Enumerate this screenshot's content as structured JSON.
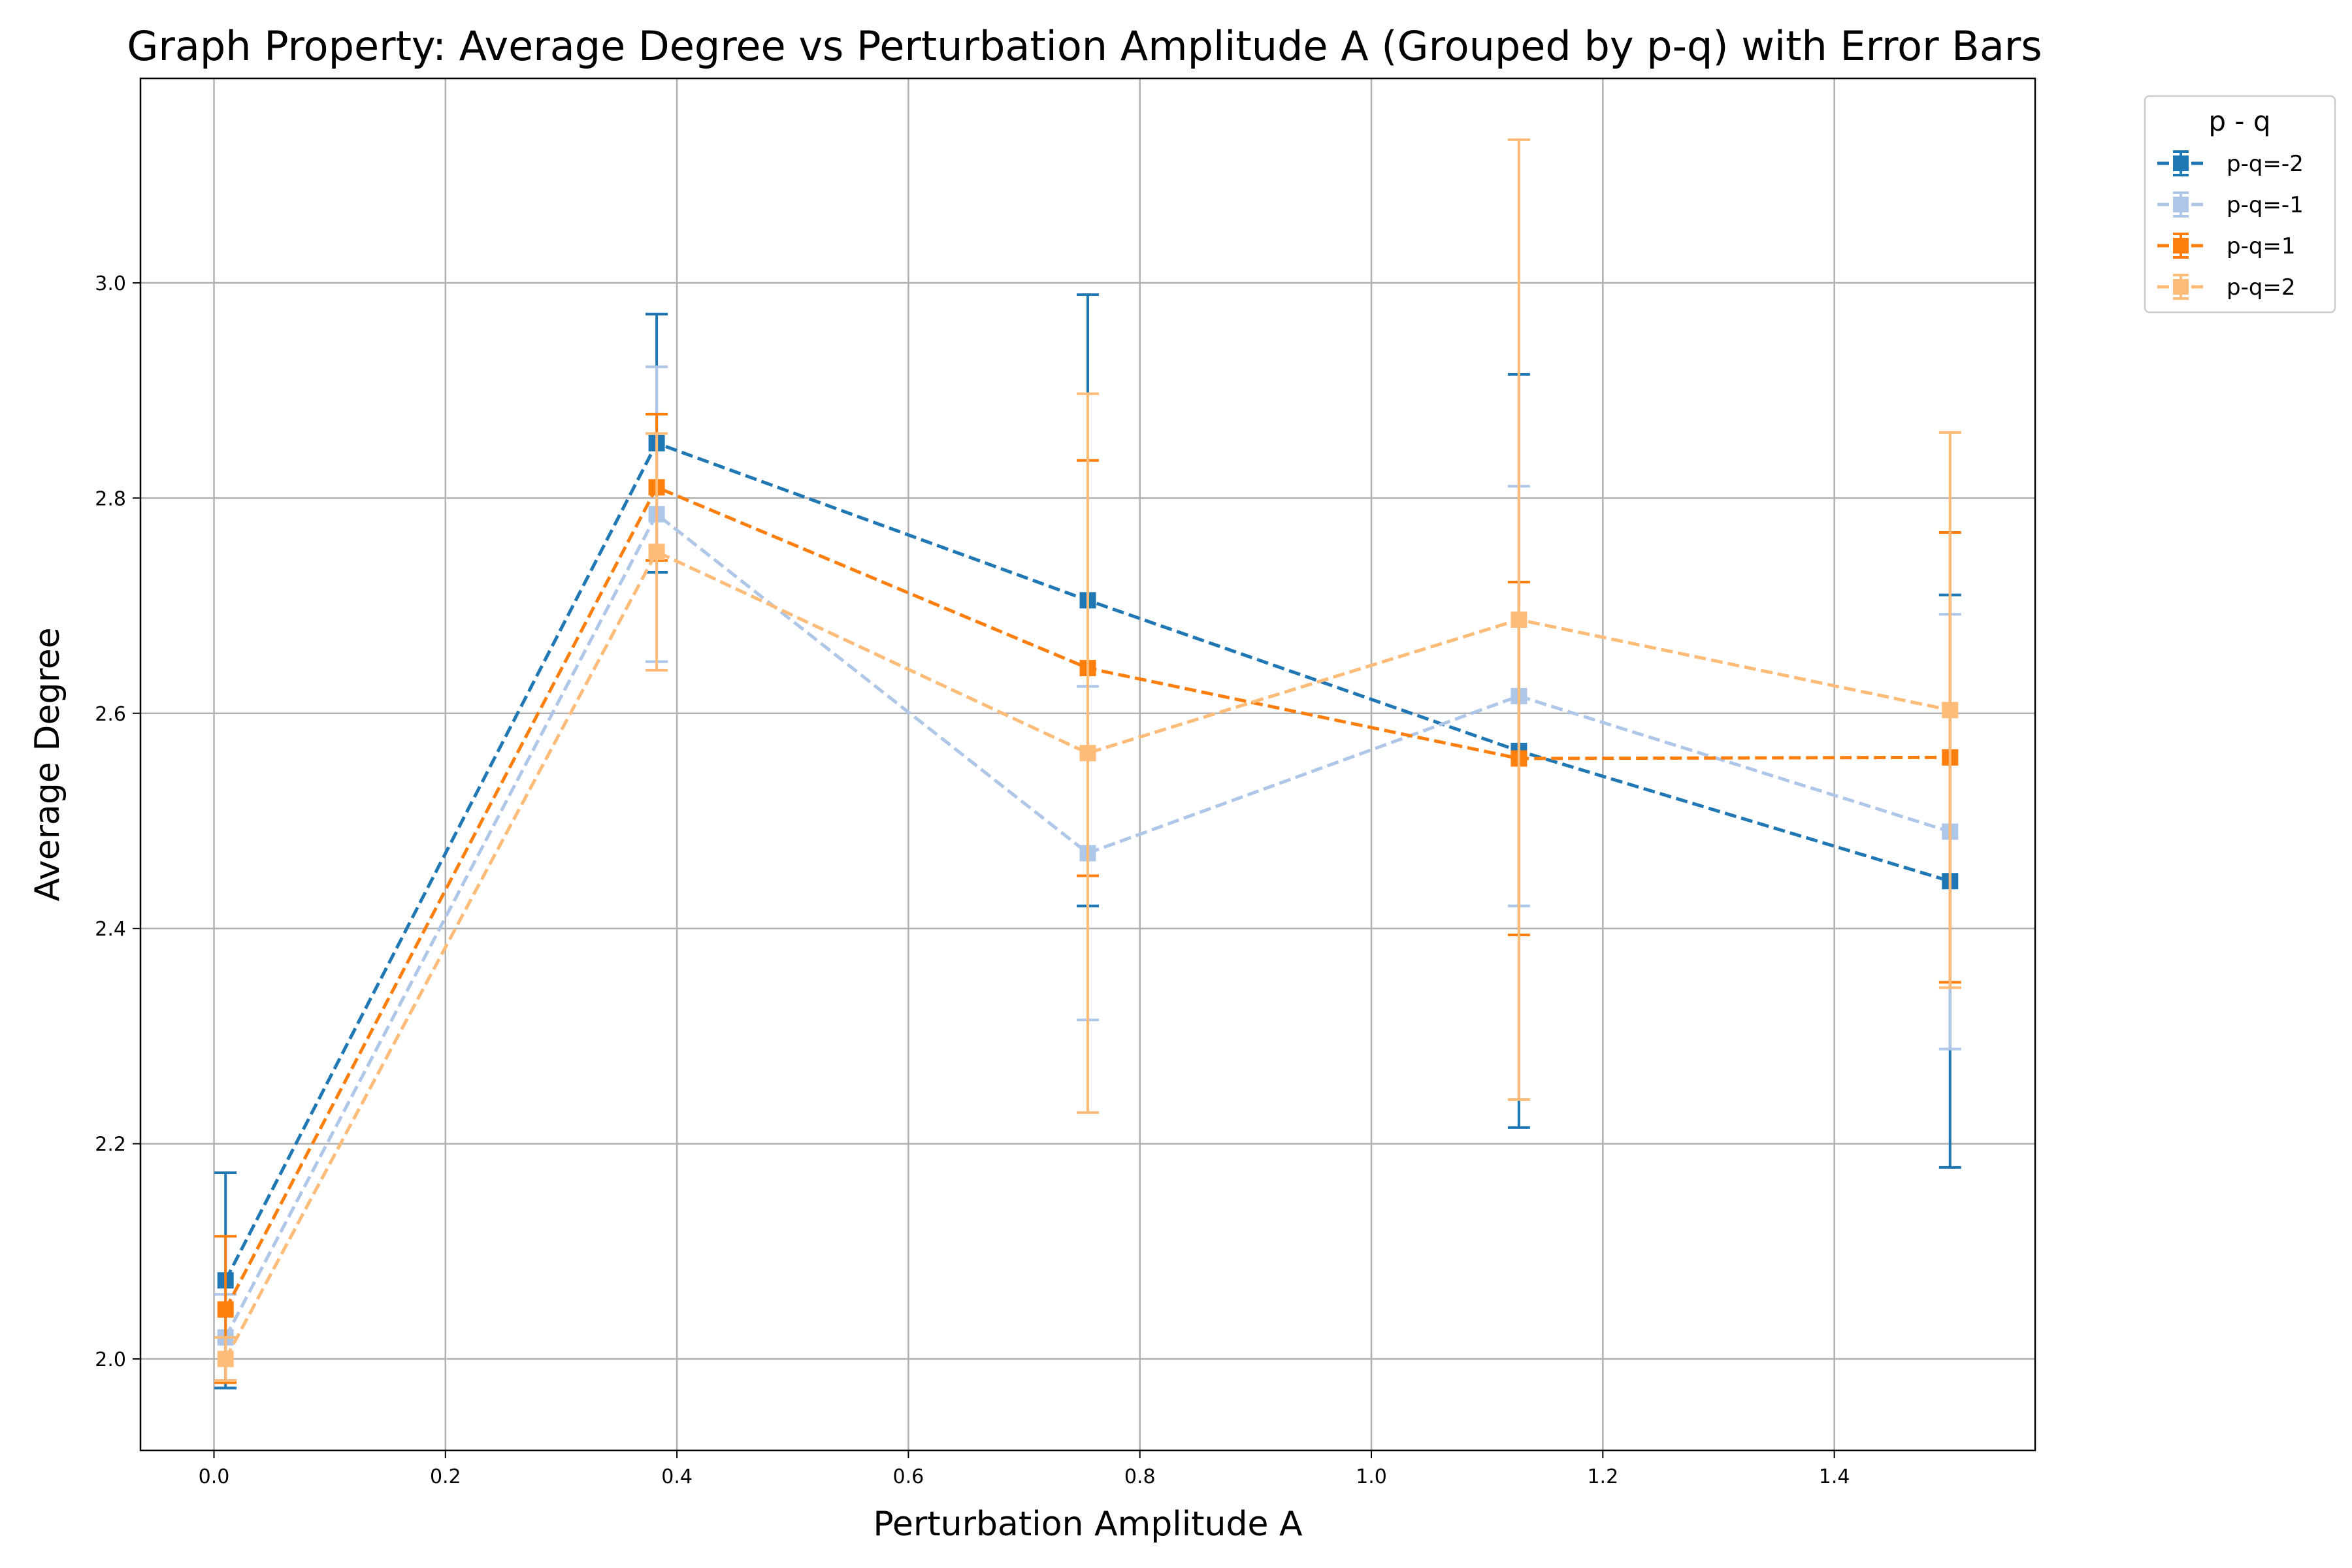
{
  "chart_data": {
    "type": "line",
    "title": "Graph Property: Average Degree vs Perturbation Amplitude A (Grouped by p-q) with Error Bars",
    "xlabel": "Perturbation Amplitude A",
    "ylabel": "Average Degree",
    "xlim": [
      -0.0635,
      1.5735
    ],
    "ylim": [
      1.915,
      3.19
    ],
    "xticks": [
      0.0,
      0.2,
      0.4,
      0.6,
      0.8,
      1.0,
      1.2,
      1.4
    ],
    "xtick_labels": [
      "0.0",
      "0.2",
      "0.4",
      "0.6",
      "0.8",
      "1.0",
      "1.2",
      "1.4"
    ],
    "yticks": [
      2.0,
      2.2,
      2.4,
      2.6,
      2.8,
      3.0
    ],
    "ytick_labels": [
      "2.0",
      "2.2",
      "2.4",
      "2.6",
      "2.8",
      "3.0"
    ],
    "grid": true,
    "legend": {
      "title": "p - q",
      "placement": "upper left, outside right of plot"
    },
    "x": [
      0.01,
      0.3825,
      0.755,
      1.1275,
      1.5
    ],
    "series": [
      {
        "name": "p-q=-2",
        "color": "#1f77b4",
        "values": [
          2.073,
          2.851,
          2.705,
          2.565,
          2.444
        ],
        "errors": [
          0.1,
          0.12,
          0.284,
          0.35,
          0.266
        ]
      },
      {
        "name": "p-q=-1",
        "color": "#aec7e8",
        "values": [
          2.02,
          2.785,
          2.47,
          2.616,
          2.49
        ],
        "errors": [
          0.04,
          0.137,
          0.155,
          0.195,
          0.202
        ]
      },
      {
        "name": "p-q=1",
        "color": "#ff7f0e",
        "values": [
          2.046,
          2.81,
          2.642,
          2.558,
          2.559
        ],
        "errors": [
          0.068,
          0.068,
          0.193,
          0.164,
          0.209
        ]
      },
      {
        "name": "p-q=2",
        "color": "#ffbb78",
        "values": [
          2.0,
          2.75,
          2.563,
          2.687,
          2.603
        ],
        "errors": [
          0.02,
          0.11,
          0.334,
          0.446,
          0.258
        ]
      }
    ]
  }
}
